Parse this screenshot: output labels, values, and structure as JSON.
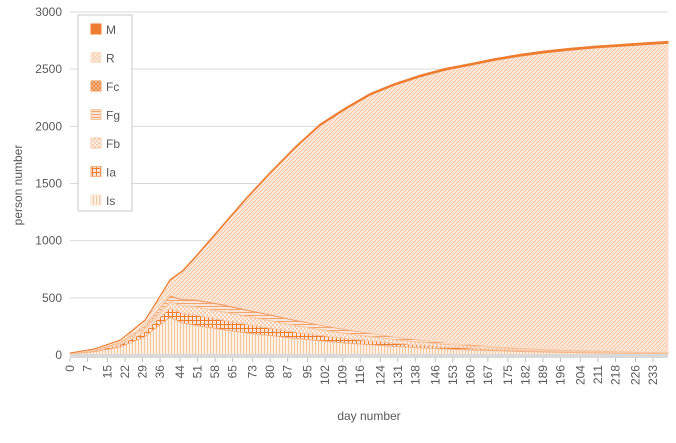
{
  "chart_data": {
    "type": "area",
    "stacked": true,
    "title": "",
    "xlabel": "day number",
    "ylabel": "person number",
    "xlim": [
      0,
      239
    ],
    "ylim": [
      0,
      3000
    ],
    "y_ticks": [
      0,
      500,
      1000,
      1500,
      2000,
      2500,
      3000
    ],
    "x_ticks": [
      0,
      7,
      15,
      22,
      29,
      36,
      44,
      51,
      58,
      65,
      73,
      80,
      87,
      95,
      102,
      109,
      116,
      124,
      131,
      138,
      146,
      153,
      160,
      167,
      175,
      182,
      189,
      196,
      204,
      211,
      218,
      226,
      233
    ],
    "grid": "horizontal",
    "legend_position": "top-left",
    "x": [
      0,
      10,
      20,
      30,
      35,
      40,
      45,
      50,
      60,
      70,
      80,
      90,
      100,
      110,
      120,
      130,
      140,
      150,
      160,
      170,
      180,
      190,
      200,
      210,
      220,
      230,
      239
    ],
    "series": [
      {
        "name": "Is",
        "color": "#fce4d2",
        "values": [
          10,
          30,
          70,
          160,
          250,
          330,
          280,
          260,
          225,
          195,
          170,
          145,
          125,
          105,
          90,
          75,
          62,
          52,
          44,
          37,
          31,
          26,
          22,
          19,
          16,
          14,
          12
        ]
      },
      {
        "name": "Ia",
        "color": "#f4b183",
        "values": [
          4,
          10,
          20,
          45,
          65,
          80,
          85,
          90,
          85,
          75,
          65,
          55,
          47,
          40,
          34,
          28,
          23,
          19,
          16,
          13,
          11,
          9,
          8,
          7,
          6,
          5,
          4
        ]
      },
      {
        "name": "Fb",
        "color": "#f8cbad",
        "values": [
          2,
          6,
          12,
          28,
          42,
          55,
          62,
          70,
          72,
          70,
          65,
          58,
          50,
          43,
          37,
          31,
          26,
          22,
          18,
          15,
          12,
          10,
          9,
          8,
          7,
          6,
          5
        ]
      },
      {
        "name": "Fg",
        "color": "#f6c7a0",
        "values": [
          1,
          4,
          10,
          22,
          35,
          50,
          55,
          60,
          60,
          55,
          50,
          45,
          40,
          35,
          30,
          25,
          20,
          17,
          14,
          11,
          9,
          8,
          7,
          6,
          5,
          4,
          4
        ]
      },
      {
        "name": "Fc",
        "color": "#ee9a63",
        "values": [
          0,
          1,
          2,
          4,
          6,
          10,
          10,
          10,
          10,
          9,
          8,
          7,
          6,
          5,
          4,
          3,
          3,
          2,
          2,
          2,
          1,
          1,
          1,
          1,
          1,
          1,
          1
        ]
      },
      {
        "name": "R",
        "color": "#fbe0cb",
        "values": [
          0,
          4,
          15,
          45,
          80,
          130,
          240,
          360,
          650,
          950,
          1230,
          1500,
          1740,
          1920,
          2080,
          2200,
          2300,
          2380,
          2440,
          2500,
          2550,
          2590,
          2620,
          2645,
          2665,
          2685,
          2700
        ]
      },
      {
        "name": "M",
        "color": "#ed7d31",
        "values": [
          0,
          0,
          1,
          2,
          3,
          5,
          6,
          7,
          8,
          9,
          10,
          11,
          12,
          13,
          13,
          14,
          14,
          15,
          15,
          15,
          16,
          16,
          16,
          16,
          16,
          16,
          17
        ]
      }
    ]
  }
}
